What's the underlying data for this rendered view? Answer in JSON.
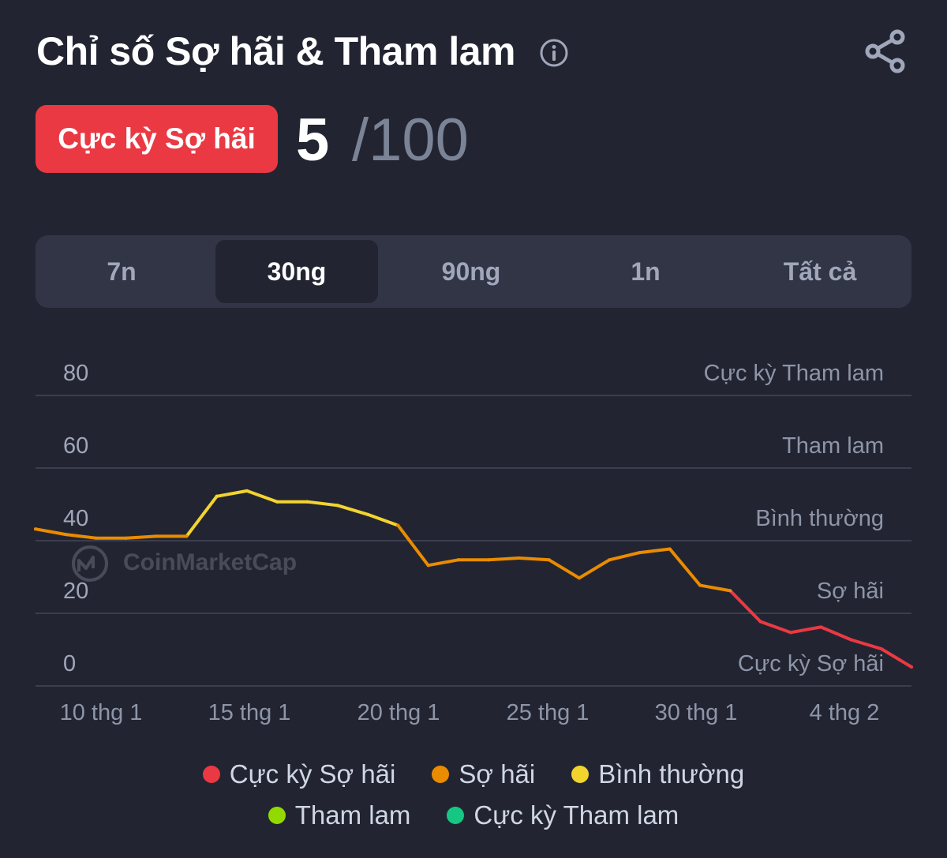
{
  "header": {
    "title": "Chỉ số Sợ hãi & Tham lam",
    "info_icon": "info-circle-icon",
    "share_icon": "share-icon"
  },
  "score": {
    "badge_label": "Cực kỳ Sợ hãi",
    "badge_color": "#ea3943",
    "value": "5",
    "max": "/100"
  },
  "tabs": [
    {
      "label": "7n",
      "active": false
    },
    {
      "label": "30ng",
      "active": true
    },
    {
      "label": "90ng",
      "active": false
    },
    {
      "label": "1n",
      "active": false
    },
    {
      "label": "Tất cả",
      "active": false
    }
  ],
  "watermark": "CoinMarketCap",
  "chart_data": {
    "type": "line",
    "y_ticks": [
      80,
      60,
      40,
      20,
      0
    ],
    "y_range": [
      0,
      80
    ],
    "zone_labels": [
      {
        "label": "Cực kỳ Tham lam",
        "y": 80
      },
      {
        "label": "Tham lam",
        "y": 60
      },
      {
        "label": "Bình thường",
        "y": 40
      },
      {
        "label": "Sợ hãi",
        "y": 20
      },
      {
        "label": "Cực kỳ Sợ hãi",
        "y": 0
      }
    ],
    "x_labels": [
      "10 thg 1",
      "15 thg 1",
      "20 thg 1",
      "25 thg 1",
      "30 thg 1",
      "4 thg 2"
    ],
    "grid": true,
    "color_thresholds": [
      {
        "max": 25,
        "color": "#ea3943"
      },
      {
        "max": 45,
        "color": "#ea8c00"
      },
      {
        "max": 55,
        "color": "#f3d42f"
      },
      {
        "max": 75,
        "color": "#93d900"
      },
      {
        "max": 100,
        "color": "#16c784"
      }
    ],
    "series": [
      {
        "values": [
          43,
          41.5,
          40.5,
          40.5,
          41,
          41,
          52,
          53.5,
          50.5,
          50.5,
          49.5,
          47,
          44,
          33,
          34.5,
          34.5,
          35,
          34.5,
          29.5,
          34.5,
          36.5,
          37.5,
          27.5,
          26,
          17.5,
          14.5,
          16,
          12.5,
          10,
          5
        ]
      }
    ]
  },
  "legend": [
    {
      "label": "Cực kỳ Sợ hãi",
      "color": "#ea3943"
    },
    {
      "label": "Sợ hãi",
      "color": "#ea8c00"
    },
    {
      "label": "Bình thường",
      "color": "#f3d42f"
    },
    {
      "label": "Tham lam",
      "color": "#93d900"
    },
    {
      "label": "Cực kỳ Tham lam",
      "color": "#16c784"
    }
  ]
}
